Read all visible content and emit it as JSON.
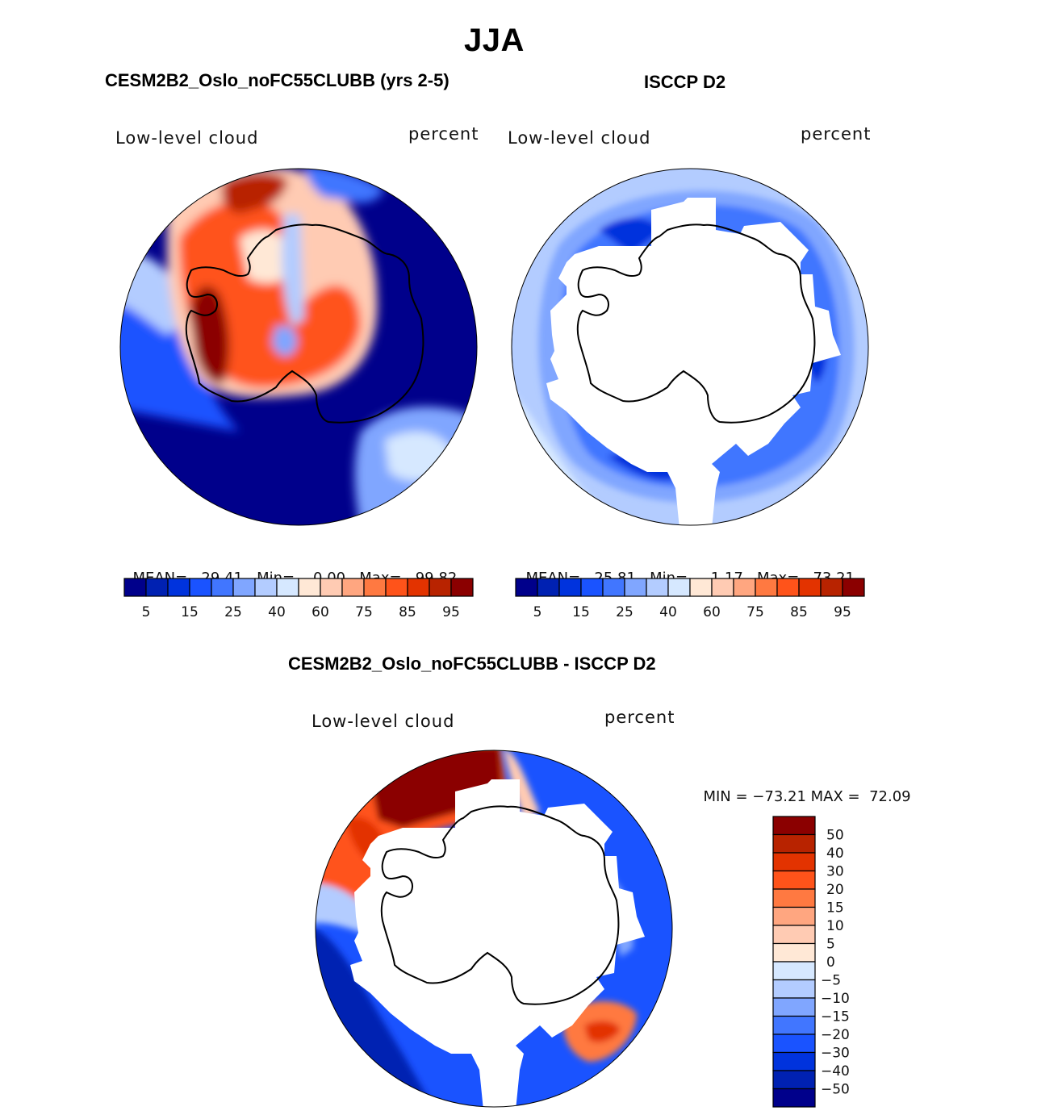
{
  "figure": {
    "season_title": "JJA"
  },
  "chart_data": [
    {
      "type": "heatmap",
      "projection": "south-polar-stereographic",
      "panel_title": "CESM2B2_Oslo_noFC55CLUBB (yrs 2-5)",
      "variable_label": "Low-level cloud",
      "units_label": "percent",
      "stats": {
        "mean_label": "MEAN=",
        "mean": "29.41",
        "min_label": "Min=",
        "min": "0.00",
        "max_label": "Max=",
        "max": "99.82"
      },
      "colorbar": {
        "orientation": "horizontal",
        "levels": [
          5,
          10,
          15,
          20,
          25,
          30,
          40,
          50,
          60,
          70,
          75,
          80,
          85,
          90,
          95
        ],
        "tick_labels": [
          "5",
          "15",
          "25",
          "40",
          "60",
          "75",
          "85",
          "95"
        ],
        "colors": [
          "#00008b",
          "#0021b2",
          "#0033dd",
          "#1a53ff",
          "#4176ff",
          "#80a6ff",
          "#b3ccff",
          "#d6e8ff",
          "#ffe8d6",
          "#ffcbb3",
          "#ffa680",
          "#ff7941",
          "#ff531a",
          "#e33300",
          "#b82300",
          "#8b0000"
        ]
      },
      "description": "Model low-level cloud fraction; high values (60-99%) over Weddell Sea / Antarctic Peninsula sector, near-zero over East Antarctica and most of the surrounding ocean."
    },
    {
      "type": "heatmap",
      "projection": "south-polar-stereographic",
      "panel_title": "ISCCP D2",
      "variable_label": "Low-level cloud",
      "units_label": "percent",
      "stats": {
        "mean_label": "MEAN=",
        "mean": "25.81",
        "min_label": "Min=",
        "min": "1.17",
        "max_label": "Max=",
        "max": "73.21"
      },
      "colorbar": {
        "orientation": "horizontal",
        "levels": [
          5,
          10,
          15,
          20,
          25,
          30,
          40,
          50,
          60,
          70,
          75,
          80,
          85,
          90,
          95
        ],
        "tick_labels": [
          "5",
          "15",
          "25",
          "40",
          "60",
          "75",
          "85",
          "95"
        ],
        "colors": [
          "#00008b",
          "#0021b2",
          "#0033dd",
          "#1a53ff",
          "#4176ff",
          "#80a6ff",
          "#b3ccff",
          "#d6e8ff",
          "#ffe8d6",
          "#ffcbb3",
          "#ffa680",
          "#ff7941",
          "#ff531a",
          "#e33300",
          "#b82300",
          "#8b0000"
        ]
      },
      "description": "Observed low-level cloud fraction; ring of 15-40% values around Antarctica, missing data (white) over the continent and sea-ice zone."
    },
    {
      "type": "heatmap",
      "projection": "south-polar-stereographic",
      "panel_title": "CESM2B2_Oslo_noFC55CLUBB - ISCCP D2",
      "variable_label": "Low-level cloud",
      "units_label": "percent",
      "stats": {
        "min_label": "MIN =",
        "min": "−73.21",
        "max_label": "MAX =",
        "max": "72.09"
      },
      "colorbar": {
        "orientation": "vertical",
        "levels": [
          50,
          40,
          30,
          20,
          15,
          10,
          5,
          0,
          -5,
          -10,
          -15,
          -20,
          -30,
          -40,
          -50
        ],
        "tick_labels": [
          "50",
          "40",
          "30",
          "20",
          "15",
          "10",
          "5",
          "0",
          "−5",
          "−10",
          "−15",
          "−20",
          "−30",
          "−40",
          "−50"
        ],
        "colors": [
          "#8b0000",
          "#b82300",
          "#e33300",
          "#ff531a",
          "#ff7941",
          "#ffa680",
          "#ffcbb3",
          "#ffe8d6",
          "#d6e8ff",
          "#b3ccff",
          "#80a6ff",
          "#4176ff",
          "#1a53ff",
          "#0033dd",
          "#0021b2",
          "#00008b"
        ]
      },
      "description": "Difference model minus observations; large positive (>50) in the Weddell/South Atlantic sector and near the Ross Sea, negative (-20 to -50) elsewhere around the ring."
    }
  ]
}
